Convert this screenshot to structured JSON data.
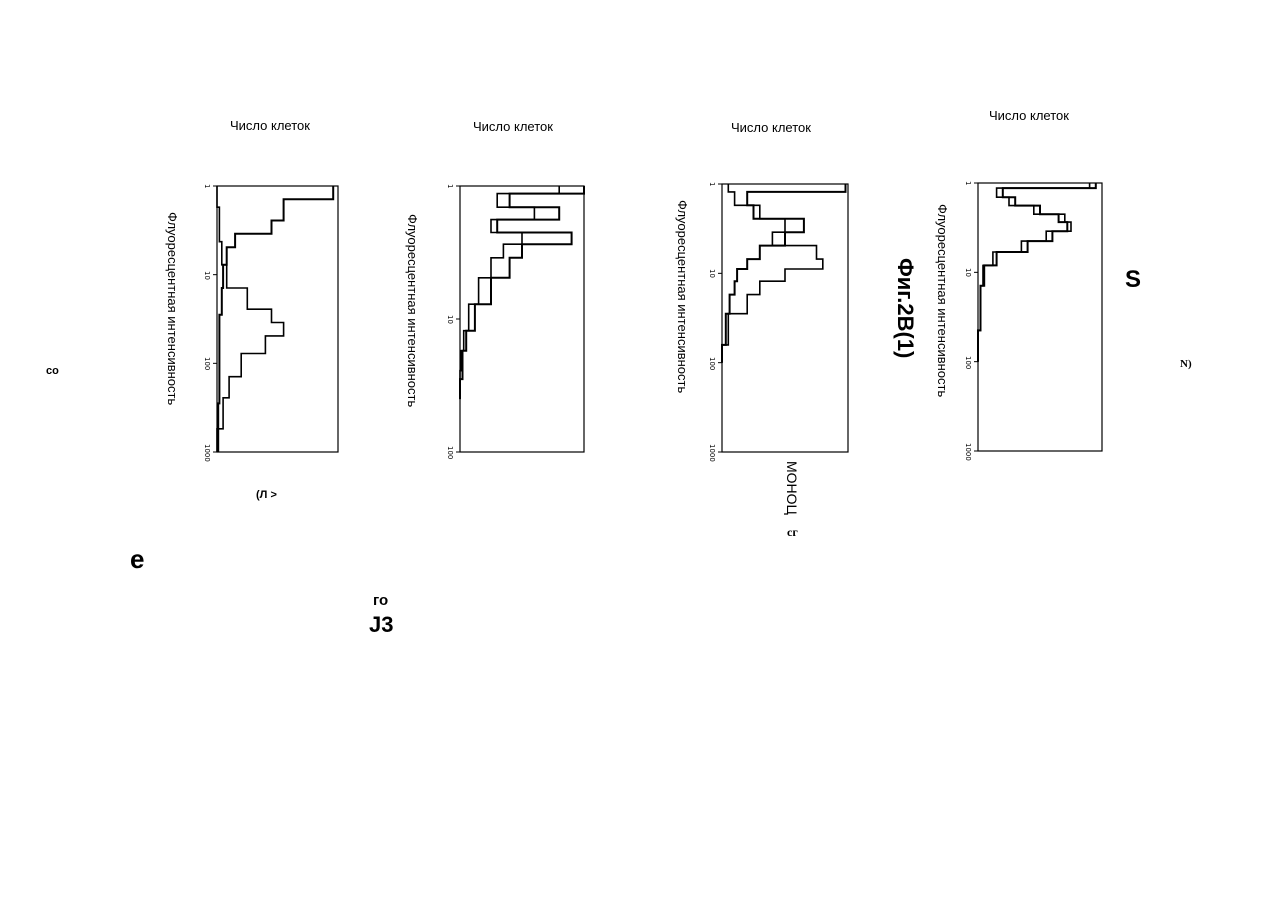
{
  "chart_data": [
    {
      "type": "line",
      "title": "Число клеток",
      "ylabel": "Флуоресцентная интенсивность",
      "yscale": "log",
      "ylim": [
        1,
        1000
      ],
      "tick_labels": [
        "1",
        "10",
        "100",
        "1000"
      ],
      "series": [
        {
          "y": [
            1,
            2,
            3,
            4,
            6,
            10,
            20,
            40,
            100,
            200,
            400,
            1000
          ],
          "values": [
            0.96,
            0.55,
            0.45,
            0.15,
            0.08,
            0.05,
            0.04,
            0.02,
            0.02,
            0.02,
            0.01,
            0.01
          ]
        },
        {
          "y": [
            1,
            3,
            6,
            10,
            20,
            30,
            40,
            60,
            100,
            200,
            300,
            1000
          ],
          "values": [
            0.0,
            0.02,
            0.04,
            0.08,
            0.25,
            0.45,
            0.55,
            0.4,
            0.2,
            0.1,
            0.05,
            0.0
          ]
        }
      ]
    },
    {
      "type": "line",
      "title": "Число клеток",
      "ylabel": "Флуоресцентная интенсивность",
      "yscale": "log",
      "ylim": [
        1,
        100
      ],
      "tick_labels": [
        "1",
        "10",
        "100"
      ],
      "series": [
        {
          "y": [
            1,
            1.3,
            1.6,
            2,
            2.5,
            3,
            4,
            6,
            10,
            15,
            20,
            40
          ],
          "values": [
            1.0,
            0.4,
            0.8,
            0.3,
            0.9,
            0.5,
            0.4,
            0.25,
            0.12,
            0.05,
            0.02,
            0.0
          ]
        },
        {
          "y": [
            1,
            1.3,
            1.6,
            2,
            2.5,
            3,
            4,
            6,
            10,
            15,
            20,
            30
          ],
          "values": [
            0.8,
            0.3,
            0.6,
            0.25,
            0.5,
            0.35,
            0.25,
            0.15,
            0.07,
            0.03,
            0.01,
            0.0
          ]
        }
      ]
    },
    {
      "type": "line",
      "title": "Число клеток",
      "ylabel": "Флуоресцентная интенсивность",
      "yscale": "log",
      "ylim": [
        1,
        1000
      ],
      "tick_labels": [
        "1",
        "10",
        "100",
        "1000"
      ],
      "series": [
        {
          "y": [
            1,
            1.5,
            2,
            3,
            4,
            6,
            8,
            10,
            15,
            20,
            40,
            100
          ],
          "values": [
            0.98,
            0.2,
            0.25,
            0.65,
            0.5,
            0.3,
            0.2,
            0.12,
            0.1,
            0.06,
            0.03,
            0.0
          ]
        },
        {
          "y": [
            1,
            1.5,
            2,
            3,
            4,
            6,
            8,
            10,
            15,
            20,
            40,
            100
          ],
          "values": [
            0.05,
            0.1,
            0.3,
            0.5,
            0.4,
            0.75,
            0.8,
            0.5,
            0.3,
            0.2,
            0.05,
            0.0
          ]
        }
      ]
    },
    {
      "type": "line",
      "title": "Число клеток",
      "ylabel": "Флуоресцентная интенсивность",
      "yscale": "log",
      "ylim": [
        1,
        1000
      ],
      "tick_labels": [
        "1",
        "10",
        "100",
        "1000"
      ],
      "series": [
        {
          "y": [
            1,
            1.3,
            1.6,
            2,
            2.5,
            3,
            4,
            5,
            7,
            10,
            20,
            100
          ],
          "values": [
            0.95,
            0.2,
            0.3,
            0.5,
            0.65,
            0.72,
            0.6,
            0.4,
            0.15,
            0.05,
            0.02,
            0.0
          ]
        },
        {
          "y": [
            1,
            1.3,
            1.6,
            2,
            2.5,
            3,
            4,
            5,
            7,
            10,
            20,
            100
          ],
          "values": [
            0.9,
            0.15,
            0.25,
            0.45,
            0.7,
            0.75,
            0.55,
            0.35,
            0.12,
            0.04,
            0.02,
            0.0
          ]
        }
      ]
    }
  ],
  "figure_label": "Фиг.2В(1)",
  "extra_text": {
    "co": "co",
    "paren_l": "(Л >",
    "e_big": "e",
    "go": "го",
    "j3": "J3",
    "monots": "МОНОЦ",
    "cg": "cг",
    "s_big": "S",
    "n_paren": "N)"
  }
}
